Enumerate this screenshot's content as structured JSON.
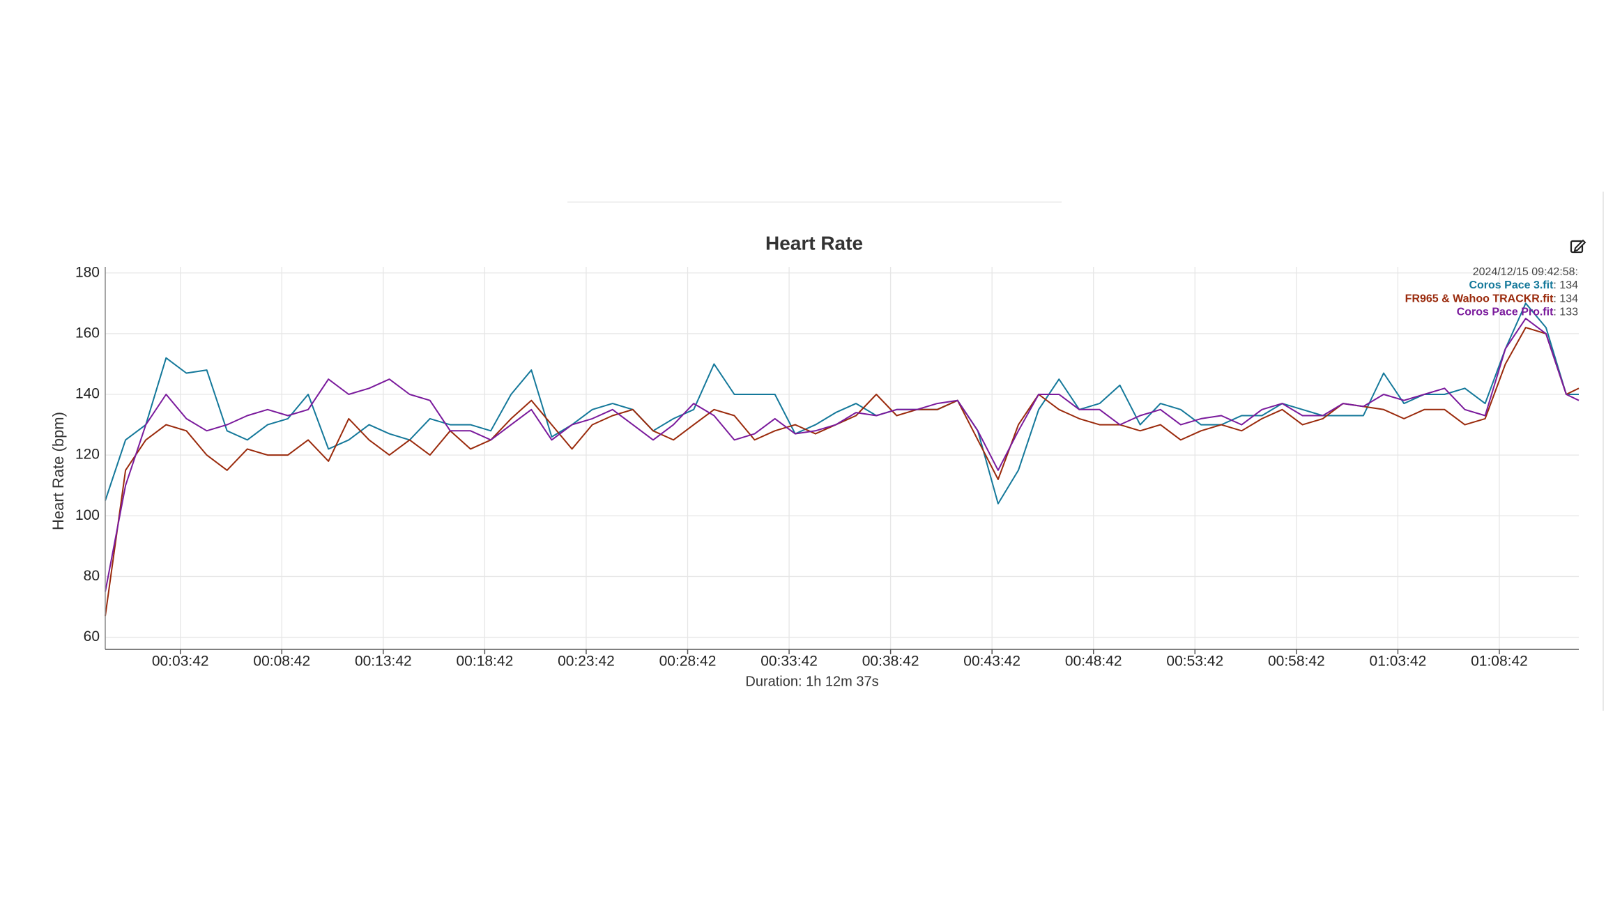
{
  "chart_data": {
    "type": "line",
    "title": "Heart Rate",
    "y_label": "Heart Rate (bpm)",
    "x_label": "Duration: 1h 12m 37s",
    "xlim": [
      0,
      4357
    ],
    "ylim": [
      56,
      182
    ],
    "xticks": [
      {
        "value": 222,
        "label": "00:03:42"
      },
      {
        "value": 522,
        "label": "00:08:42"
      },
      {
        "value": 822,
        "label": "00:13:42"
      },
      {
        "value": 1122,
        "label": "00:18:42"
      },
      {
        "value": 1422,
        "label": "00:23:42"
      },
      {
        "value": 1722,
        "label": "00:28:42"
      },
      {
        "value": 2022,
        "label": "00:33:42"
      },
      {
        "value": 2322,
        "label": "00:38:42"
      },
      {
        "value": 2622,
        "label": "00:43:42"
      },
      {
        "value": 2922,
        "label": "00:48:42"
      },
      {
        "value": 3222,
        "label": "00:53:42"
      },
      {
        "value": 3522,
        "label": "00:58:42"
      },
      {
        "value": 3822,
        "label": "01:03:42"
      },
      {
        "value": 4122,
        "label": "01:08:42"
      }
    ],
    "yticks": [
      60,
      80,
      100,
      120,
      140,
      160,
      180
    ],
    "grid": true,
    "x": [
      0,
      60,
      120,
      180,
      240,
      300,
      360,
      420,
      480,
      540,
      600,
      660,
      720,
      780,
      840,
      900,
      960,
      1020,
      1080,
      1140,
      1200,
      1260,
      1320,
      1380,
      1440,
      1500,
      1560,
      1620,
      1680,
      1740,
      1800,
      1860,
      1920,
      1980,
      2040,
      2100,
      2160,
      2220,
      2280,
      2340,
      2400,
      2460,
      2520,
      2580,
      2640,
      2700,
      2760,
      2820,
      2880,
      2940,
      3000,
      3060,
      3120,
      3180,
      3240,
      3300,
      3360,
      3420,
      3480,
      3540,
      3600,
      3660,
      3720,
      3780,
      3840,
      3900,
      3960,
      4020,
      4080,
      4140,
      4200,
      4260,
      4320,
      4357
    ],
    "series": [
      {
        "name": "Coros Pace 3.fit",
        "color": "#14789a",
        "values": [
          105,
          125,
          130,
          152,
          147,
          148,
          128,
          125,
          130,
          132,
          140,
          122,
          125,
          130,
          127,
          125,
          132,
          130,
          130,
          128,
          140,
          148,
          126,
          130,
          135,
          137,
          135,
          128,
          132,
          135,
          150,
          140,
          140,
          140,
          127,
          130,
          134,
          137,
          133,
          135,
          135,
          135,
          138,
          128,
          104,
          115,
          135,
          145,
          135,
          137,
          143,
          130,
          137,
          135,
          130,
          130,
          133,
          133,
          137,
          135,
          133,
          133,
          133,
          147,
          137,
          140,
          140,
          142,
          137,
          155,
          170,
          162,
          140,
          140
        ]
      },
      {
        "name": "FR965 & Wahoo TRACKR.fit",
        "color": "#9a2a0c",
        "values": [
          67,
          115,
          125,
          130,
          128,
          120,
          115,
          122,
          120,
          120,
          125,
          118,
          132,
          125,
          120,
          125,
          120,
          128,
          122,
          125,
          132,
          138,
          130,
          122,
          130,
          133,
          135,
          128,
          125,
          130,
          135,
          133,
          125,
          128,
          130,
          127,
          130,
          133,
          140,
          133,
          135,
          135,
          138,
          125,
          112,
          130,
          140,
          135,
          132,
          130,
          130,
          128,
          130,
          125,
          128,
          130,
          128,
          132,
          135,
          130,
          132,
          137,
          136,
          135,
          132,
          135,
          135,
          130,
          132,
          150,
          162,
          160,
          140,
          142
        ]
      },
      {
        "name": "Coros Pace Pro.fit",
        "color": "#7a1a9c",
        "values": [
          75,
          110,
          130,
          140,
          132,
          128,
          130,
          133,
          135,
          133,
          135,
          145,
          140,
          142,
          145,
          140,
          138,
          128,
          128,
          125,
          130,
          135,
          125,
          130,
          132,
          135,
          130,
          125,
          130,
          137,
          133,
          125,
          127,
          132,
          127,
          128,
          130,
          134,
          133,
          135,
          135,
          137,
          138,
          128,
          115,
          128,
          140,
          140,
          135,
          135,
          130,
          133,
          135,
          130,
          132,
          133,
          130,
          135,
          137,
          133,
          133,
          137,
          136,
          140,
          138,
          140,
          142,
          135,
          133,
          155,
          165,
          160,
          140,
          138
        ]
      }
    ],
    "tooltip": {
      "time": "2024/12/15 09:42:58:",
      "separator": ": ",
      "values": [
        134,
        134,
        133
      ]
    }
  }
}
